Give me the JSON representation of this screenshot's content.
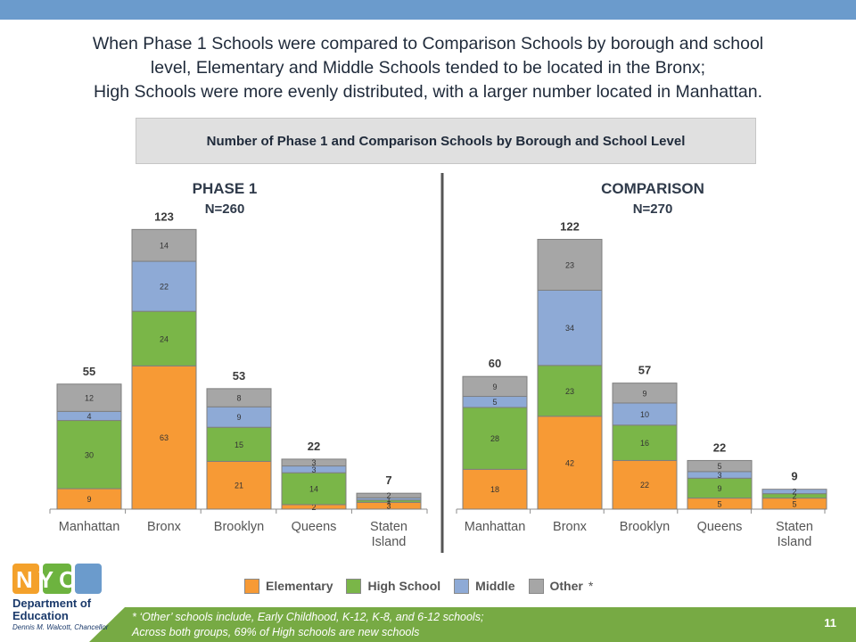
{
  "header": {
    "line1": "When Phase 1 Schools were compared to Comparison Schools by borough and school",
    "line2": "level, Elementary and Middle Schools tended to be located in the Bronx;",
    "line3": "High Schools were more evenly distributed, with a larger number located in Manhattan."
  },
  "subtitle": "Number of Phase 1 and Comparison Schools by Borough and School Level",
  "legend": {
    "items": [
      "Elementary",
      "High School",
      "Middle",
      "Other"
    ],
    "other_marker": "*"
  },
  "footer": {
    "note1": "* ‘Other’ schools include, Early Childhood, K-12, K-8, and 6-12 schools;",
    "note2": "Across both groups, 69% of High schools are new schools",
    "page": "11"
  },
  "logo": {
    "mark": "NYC",
    "line1": "Department of",
    "line2": "Education",
    "line3": "Dennis M. Walcott, Chancellor"
  },
  "colors": {
    "Elementary": "#f79a35",
    "High School": "#7ab648",
    "Middle": "#8eaad6",
    "Other": "#a6a6a6",
    "top_bar": "#6b9bcc",
    "footer": "#77aa44",
    "logo_orange": "#f4a12b",
    "logo_green": "#6db33f"
  },
  "chart_data": [
    {
      "type": "bar",
      "stacked": true,
      "title": "PHASE 1",
      "n_label": "N=260",
      "categories": [
        "Manhattan",
        "Bronx",
        "Brooklyn",
        "Queens",
        "Staten Island"
      ],
      "series": [
        {
          "name": "Elementary",
          "values": [
            9,
            63,
            21,
            2,
            3
          ]
        },
        {
          "name": "High School",
          "values": [
            30,
            24,
            15,
            14,
            1
          ]
        },
        {
          "name": "Middle",
          "values": [
            4,
            22,
            9,
            3,
            1
          ]
        },
        {
          "name": "Other",
          "values": [
            12,
            14,
            8,
            3,
            2
          ]
        }
      ],
      "totals": [
        55,
        123,
        53,
        22,
        7
      ],
      "ylim": [
        0,
        130
      ]
    },
    {
      "type": "bar",
      "stacked": true,
      "title": "COMPARISON",
      "n_label": "N=270",
      "categories": [
        "Manhattan",
        "Bronx",
        "Brooklyn",
        "Queens",
        "Staten Island"
      ],
      "series": [
        {
          "name": "Elementary",
          "values": [
            18,
            42,
            22,
            5,
            5
          ]
        },
        {
          "name": "High School",
          "values": [
            28,
            23,
            16,
            9,
            2
          ]
        },
        {
          "name": "Middle",
          "values": [
            5,
            34,
            10,
            3,
            2
          ]
        },
        {
          "name": "Other",
          "values": [
            9,
            23,
            9,
            5,
            0
          ]
        }
      ],
      "totals": [
        60,
        122,
        57,
        22,
        9
      ],
      "ylim": [
        0,
        130
      ]
    }
  ]
}
